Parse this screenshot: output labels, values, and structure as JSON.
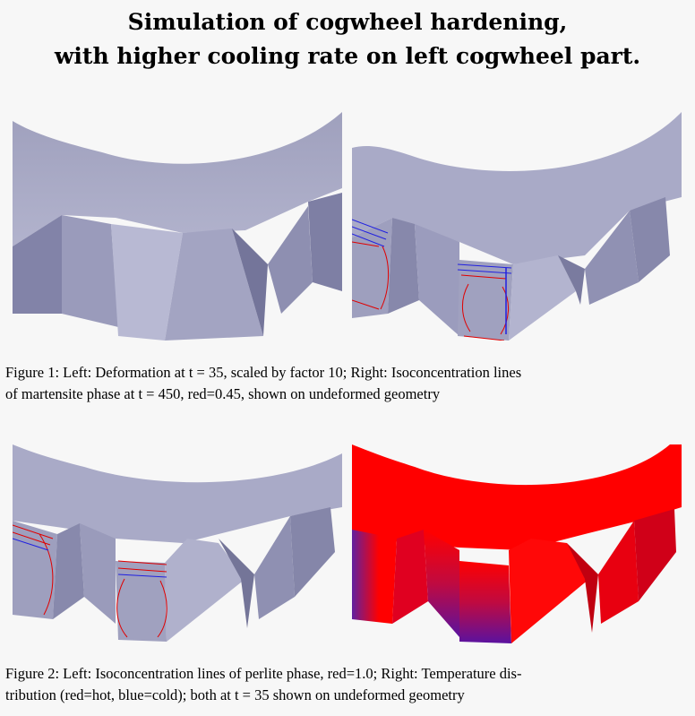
{
  "title": {
    "line1": "Simulation of cogwheel hardening,",
    "line2": "with higher cooling rate on left cogwheel part."
  },
  "figure1": {
    "caption_line1": "Figure 1: Left: Deformation at t = 35, scaled by factor 10; Right: Isoconcentration lines",
    "caption_line2": "of martensite phase at t = 450, red=0.45, shown on undeformed geometry"
  },
  "figure2": {
    "caption_line1": "Figure 2: Left: Isoconcentration lines of perlite phase, red=1.0; Right: Temperature dis-",
    "caption_line2": "tribution (red=hot, blue=cold); both at t = 35 shown on undeformed geometry"
  },
  "colors": {
    "gear_face": "#a9aac5",
    "gear_side": "#8c8db0",
    "gear_dark": "#6f7092",
    "isoline_red": "#e00000",
    "isoline_blue": "#2020e0",
    "temp_hot": "#ff0000",
    "temp_cold": "#5010a0",
    "background": "#f7f7f7"
  }
}
